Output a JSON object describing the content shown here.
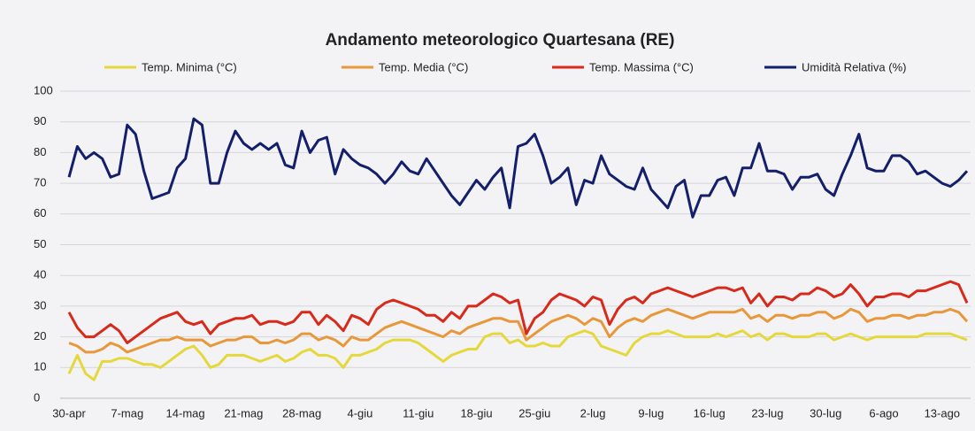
{
  "chart_data": {
    "type": "line",
    "title": "Andamento meteorologico Quartesana (RE)",
    "categories": [
      "30-apr",
      null,
      null,
      null,
      null,
      null,
      null,
      "7-mag",
      null,
      null,
      null,
      null,
      null,
      null,
      "14-mag",
      null,
      null,
      null,
      null,
      null,
      null,
      "21-mag",
      null,
      null,
      null,
      null,
      null,
      null,
      "28-mag",
      null,
      null,
      null,
      null,
      null,
      null,
      "4-giu",
      null,
      null,
      null,
      null,
      null,
      null,
      "11-giu",
      null,
      null,
      null,
      null,
      null,
      null,
      "18-giu",
      null,
      null,
      null,
      null,
      null,
      null,
      "25-giu",
      null,
      null,
      null,
      null,
      null,
      null,
      "2-lug",
      null,
      null,
      null,
      null,
      null,
      null,
      "9-lug",
      null,
      null,
      null,
      null,
      null,
      null,
      "16-lug",
      null,
      null,
      null,
      null,
      null,
      null,
      "23-lug",
      null,
      null,
      null,
      null,
      null,
      null,
      "30-lug",
      null,
      null,
      null,
      null,
      null,
      null,
      "6-ago",
      null,
      null,
      null,
      null,
      null,
      null,
      "13-ago",
      null,
      null,
      null
    ],
    "series": [
      {
        "name": "Temp. Minima (°C)",
        "color": "#e4d83c",
        "values": [
          8,
          14,
          8,
          6,
          12,
          12,
          13,
          13,
          12,
          11,
          11,
          10,
          12,
          14,
          16,
          17,
          14,
          10,
          11,
          14,
          14,
          14,
          13,
          12,
          13,
          14,
          12,
          13,
          15,
          16,
          14,
          14,
          13,
          10,
          14,
          14,
          15,
          16,
          18,
          19,
          19,
          19,
          18,
          16,
          14,
          12,
          14,
          15,
          16,
          16,
          20,
          21,
          21,
          18,
          19,
          17,
          17,
          18,
          17,
          17,
          20,
          21,
          22,
          21,
          17,
          16,
          15,
          14,
          18,
          20,
          21,
          21,
          22,
          21,
          20,
          20,
          20,
          20,
          21,
          20,
          21,
          22,
          20,
          21,
          19,
          21,
          21,
          20,
          20,
          20,
          21,
          21,
          19,
          20,
          21,
          20,
          19,
          20,
          20,
          20,
          20,
          20,
          20,
          21,
          21,
          21,
          21,
          20,
          19
        ]
      },
      {
        "name": "Temp. Media (°C)",
        "color": "#e8983a",
        "values": [
          18,
          17,
          15,
          15,
          16,
          18,
          17,
          15,
          16,
          17,
          18,
          19,
          19,
          20,
          19,
          19,
          19,
          17,
          18,
          19,
          19,
          20,
          20,
          18,
          18,
          19,
          18,
          19,
          21,
          21,
          19,
          20,
          19,
          17,
          20,
          19,
          19,
          21,
          23,
          24,
          25,
          24,
          23,
          22,
          21,
          20,
          22,
          21,
          23,
          24,
          25,
          26,
          26,
          25,
          25,
          19,
          21,
          23,
          25,
          26,
          27,
          26,
          24,
          26,
          25,
          20,
          23,
          25,
          26,
          25,
          27,
          28,
          29,
          28,
          27,
          26,
          27,
          28,
          28,
          28,
          28,
          29,
          26,
          27,
          25,
          27,
          27,
          26,
          27,
          27,
          28,
          28,
          26,
          27,
          29,
          28,
          25,
          26,
          26,
          27,
          27,
          26,
          27,
          27,
          28,
          28,
          29,
          28,
          25
        ]
      },
      {
        "name": "Temp. Massima (°C)",
        "color": "#d8291b",
        "values": [
          28,
          23,
          20,
          20,
          22,
          24,
          22,
          18,
          20,
          22,
          24,
          26,
          27,
          28,
          25,
          24,
          25,
          21,
          24,
          25,
          26,
          26,
          27,
          24,
          25,
          25,
          24,
          25,
          28,
          28,
          24,
          27,
          25,
          22,
          27,
          26,
          24,
          29,
          31,
          32,
          31,
          30,
          29,
          27,
          27,
          25,
          28,
          26,
          30,
          30,
          32,
          34,
          33,
          31,
          32,
          21,
          26,
          28,
          32,
          34,
          33,
          32,
          30,
          33,
          32,
          24,
          29,
          32,
          33,
          31,
          34,
          35,
          36,
          35,
          34,
          33,
          34,
          35,
          36,
          36,
          35,
          36,
          31,
          34,
          30,
          33,
          33,
          32,
          34,
          34,
          36,
          35,
          33,
          34,
          37,
          34,
          30,
          33,
          33,
          34,
          34,
          33,
          35,
          35,
          36,
          37,
          38,
          37,
          31
        ]
      },
      {
        "name": "Umidità Relativa (%)",
        "color": "#141f6b",
        "values": [
          72,
          82,
          78,
          80,
          78,
          72,
          73,
          89,
          86,
          74,
          65,
          66,
          67,
          75,
          78,
          91,
          89,
          70,
          70,
          80,
          87,
          83,
          81,
          83,
          81,
          83,
          76,
          75,
          87,
          80,
          84,
          85,
          73,
          81,
          78,
          76,
          75,
          73,
          70,
          73,
          77,
          74,
          73,
          78,
          74,
          70,
          66,
          63,
          67,
          71,
          68,
          72,
          75,
          62,
          82,
          83,
          86,
          79,
          70,
          72,
          75,
          63,
          71,
          70,
          79,
          73,
          71,
          69,
          68,
          75,
          68,
          65,
          62,
          69,
          71,
          59,
          66,
          66,
          71,
          72,
          66,
          75,
          75,
          83,
          74,
          74,
          73,
          68,
          72,
          72,
          73,
          68,
          66,
          73,
          79,
          86,
          75,
          74,
          74,
          79,
          79,
          77,
          73,
          74,
          72,
          70,
          69,
          71,
          74
        ]
      }
    ],
    "ylim": [
      0,
      100
    ],
    "yticks": [
      0,
      10,
      20,
      30,
      40,
      50,
      60,
      70,
      80,
      90,
      100
    ],
    "grid": true,
    "legend": "top"
  }
}
